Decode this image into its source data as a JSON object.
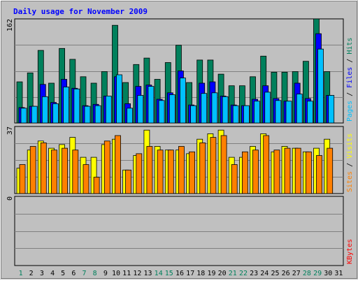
{
  "chart_data": {
    "type": "bar",
    "title": "Daily usage for November 2009",
    "categories": [
      "1",
      "2",
      "3",
      "4",
      "5",
      "6",
      "7",
      "8",
      "9",
      "10",
      "11",
      "12",
      "13",
      "14",
      "15",
      "16",
      "17",
      "18",
      "19",
      "20",
      "21",
      "22",
      "23",
      "24",
      "25",
      "26",
      "27",
      "28",
      "29",
      "30",
      "31"
    ],
    "weekend_days": [
      "1",
      "7",
      "8",
      "14",
      "15",
      "21",
      "22",
      "28",
      "29"
    ],
    "colors": {
      "hits": "#00805c",
      "files": "#0000ff",
      "pages": "#00c0ff",
      "visits": "#ffff00",
      "sites": "#ff8000",
      "kbytes": "#ff0000",
      "title": "#0000ff",
      "weekday": "#000000",
      "weekend": "#00805c",
      "panel": "#c0c0c0"
    },
    "panels": [
      {
        "ylabel_parts": [
          {
            "text": "Pages",
            "color": "#00c0ff"
          },
          {
            "text": " / ",
            "color": "#000000"
          },
          {
            "text": "Files",
            "color": "#0000ff"
          },
          {
            "text": " / ",
            "color": "#000000"
          },
          {
            "text": "Hits",
            "color": "#00805c"
          }
        ],
        "ymax_label": "162",
        "ylim": [
          0,
          162
        ],
        "series": [
          {
            "name": "Hits",
            "values": [
              64,
              78,
              113,
              62,
              116,
              99,
              72,
              62,
              80,
              152,
              63,
              91,
              101,
              68,
              94,
              121,
              63,
              98,
              98,
              76,
              58,
              58,
              72,
              104,
              79,
              79,
              80,
              96,
              162,
              80,
              0
            ]
          },
          {
            "name": "Files",
            "values": [
              24,
              26,
              60,
              32,
              68,
              54,
              27,
              29,
              42,
              72,
              30,
              57,
              59,
              37,
              47,
              81,
              28,
              62,
              64,
              42,
              28,
              27,
              37,
              58,
              38,
              34,
              62,
              38,
              139,
              43,
              0
            ]
          },
          {
            "name": "Pages",
            "values": [
              23,
              26,
              41,
              30,
              56,
              53,
              26,
              27,
              42,
              75,
              23,
              43,
              57,
              35,
              44,
              70,
              27,
              46,
              47,
              41,
              27,
              27,
              34,
              48,
              35,
              34,
              45,
              34,
              115,
              43,
              0
            ]
          }
        ]
      },
      {
        "ylabel_parts": [
          {
            "text": "Sites",
            "color": "#ff8000"
          },
          {
            "text": " / ",
            "color": "#000000"
          },
          {
            "text": "Visits",
            "color": "#ffff00"
          }
        ],
        "ymax_label": "37",
        "ylim": [
          0,
          37
        ],
        "series": [
          {
            "name": "Visits",
            "values": [
              14,
              24,
              29,
              25,
              27,
              31,
              20,
              20,
              27,
              30,
              13,
              21,
              35,
              26,
              24,
              24,
              22,
              30,
              33,
              35,
              20,
              20,
              26,
              33,
              23,
              26,
              25,
              23,
              25,
              30,
              0
            ]
          },
          {
            "name": "Sites",
            "values": [
              16,
              26,
              28,
              24,
              25,
              24,
              16,
              9,
              29,
              32,
              13,
              22,
              26,
              24,
              24,
              26,
              23,
              28,
              31,
              32,
              16,
              23,
              24,
              32,
              24,
              25,
              25,
              23,
              21,
              25,
              0
            ]
          }
        ]
      },
      {
        "ylabel_parts": [
          {
            "text": "KBytes",
            "color": "#ff0000"
          }
        ],
        "ymax_label": "0",
        "ylim": [
          0,
          1
        ],
        "series": [
          {
            "name": "KBytes",
            "values": [
              0,
              0,
              0,
              0,
              0,
              0,
              0,
              0,
              0,
              0,
              0,
              0,
              0,
              0,
              0,
              0,
              0,
              0,
              0,
              0,
              0,
              0,
              0,
              0,
              0,
              0,
              0,
              0,
              0,
              0,
              0
            ]
          }
        ]
      }
    ]
  }
}
